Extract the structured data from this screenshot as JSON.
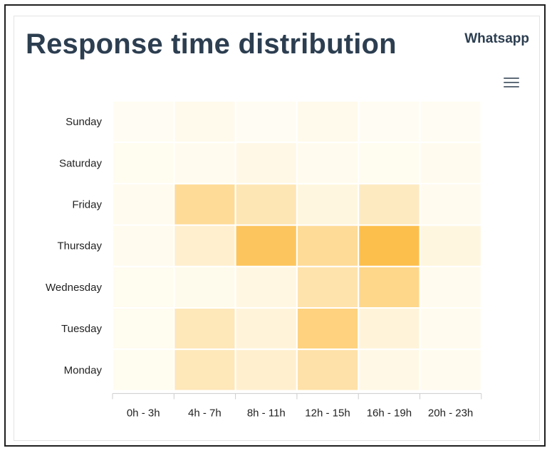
{
  "title": "Response time distribution",
  "channel": "Whatsapp",
  "menu_icon": "hamburger-menu-icon",
  "colors": {
    "title": "#2c3e50",
    "heat_low": "#fffdf3",
    "heat_high": "#fdbf4c",
    "cell_border": "#ffffff"
  },
  "chart_data": {
    "type": "heatmap",
    "title": "Response time distribution",
    "x_categories": [
      "0h - 3h",
      "4h - 7h",
      "8h - 11h",
      "12h - 15h",
      "16h - 19h",
      "20h - 23h"
    ],
    "y_categories": [
      "Sunday",
      "Saturday",
      "Friday",
      "Thursday",
      "Wednesday",
      "Tuesday",
      "Monday"
    ],
    "values": [
      [
        0.0,
        0.05,
        0.0,
        0.05,
        0.0,
        0.0
      ],
      [
        0.02,
        0.03,
        0.08,
        0.03,
        0.02,
        0.03
      ],
      [
        0.03,
        0.55,
        0.38,
        0.12,
        0.3,
        0.03
      ],
      [
        0.03,
        0.22,
        0.9,
        0.55,
        1.0,
        0.12
      ],
      [
        0.02,
        0.04,
        0.1,
        0.42,
        0.62,
        0.03
      ],
      [
        0.02,
        0.35,
        0.15,
        0.7,
        0.15,
        0.03
      ],
      [
        0.02,
        0.35,
        0.22,
        0.45,
        0.08,
        0.03
      ]
    ],
    "value_scale": "relative intensity 0-1",
    "legend": "none",
    "grid": false
  }
}
